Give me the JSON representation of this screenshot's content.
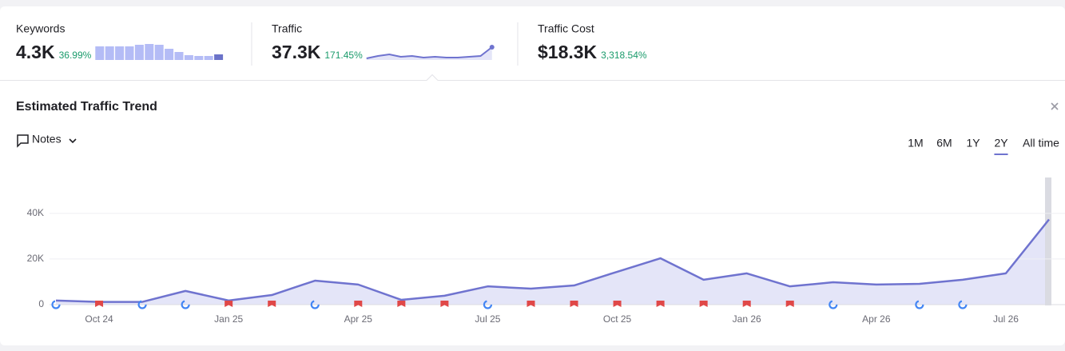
{
  "metrics": [
    {
      "label": "Keywords",
      "value": "4.3K",
      "change": "36.99%",
      "sparkline": {
        "type": "bar",
        "values": [
          17,
          17,
          17,
          17,
          19,
          20,
          19,
          14,
          10,
          6,
          5,
          5,
          7
        ],
        "ylim": [
          0,
          20
        ],
        "color": "#b4bcf6",
        "last_color": "#6b73c9"
      }
    },
    {
      "label": "Traffic",
      "value": "37.3K",
      "change": "171.45%",
      "sparkline": {
        "type": "line",
        "values": [
          2,
          5,
          7,
          4,
          5,
          3,
          4,
          3,
          3,
          4,
          5,
          16
        ],
        "ylim": [
          0,
          20
        ],
        "color": "#6f73cf"
      }
    },
    {
      "label": "Traffic Cost",
      "value": "$18.3K",
      "change": "3,318.54%"
    }
  ],
  "panel": {
    "title": "Estimated Traffic Trend",
    "notes": "Notes",
    "ranges": [
      "1M",
      "6M",
      "1Y",
      "2Y",
      "All time"
    ],
    "selected_range": "2Y"
  },
  "chart_data": {
    "type": "area",
    "categories": [
      null,
      "Oct 24",
      null,
      null,
      "Jan 25",
      null,
      null,
      "Apr 25",
      null,
      null,
      "Jul 25",
      null,
      null,
      "Oct 25",
      null,
      null,
      "Jan 26",
      null,
      null,
      "Apr 26",
      null,
      null,
      "Jul 26",
      null
    ],
    "values": [
      1800,
      1200,
      1200,
      6000,
      1800,
      4200,
      10500,
      8800,
      2100,
      3900,
      8000,
      7000,
      8400,
      14400,
      20300,
      10900,
      13700,
      8000,
      9800,
      8800,
      9100,
      10900,
      13700,
      37300
    ],
    "color": "#6f73cf",
    "fill": "#e4e5f8",
    "ylim": [
      0,
      55000
    ],
    "yticks": [
      0,
      {
        "value": 20000,
        "label": "20K"
      },
      {
        "value": 40000,
        "label": "40K"
      }
    ],
    "grid": true
  }
}
